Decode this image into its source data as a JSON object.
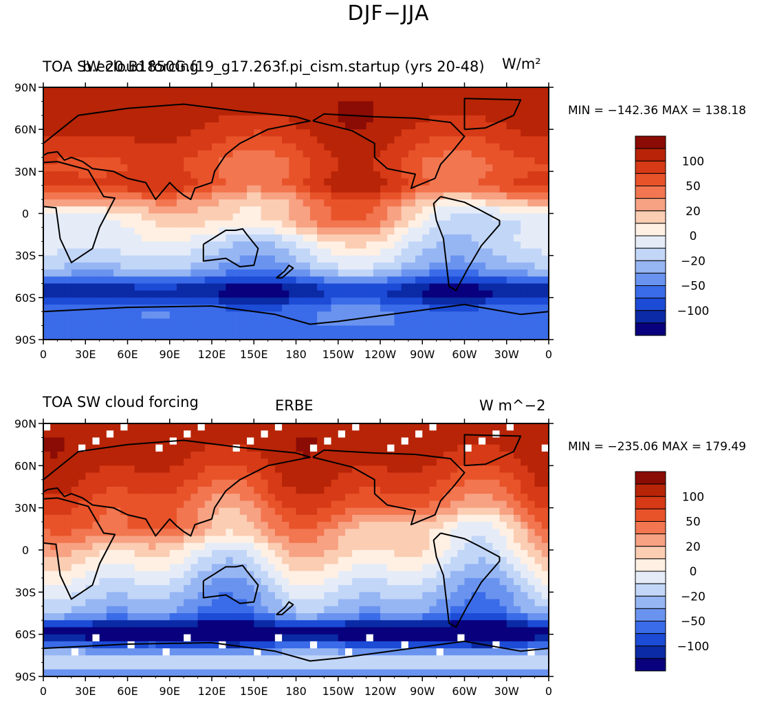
{
  "title": "DJF−JJA",
  "colors": {
    "levels": [
      "#08007c",
      "#0b2aa5",
      "#1c4bd6",
      "#3a6be8",
      "#6993ef",
      "#96b5f3",
      "#c2d6f8",
      "#e5ecf8",
      "#fff0e3",
      "#fbcdb3",
      "#f7a283",
      "#f27650",
      "#e8532a",
      "#d63a16",
      "#b82407",
      "#8a0c05"
    ],
    "missing": "#ffffff",
    "coast": "#000000"
  },
  "x_ticks": [
    "0",
    "30E",
    "60E",
    "90E",
    "120E",
    "150E",
    "180",
    "150W",
    "120W",
    "90W",
    "60W",
    "30W",
    "0"
  ],
  "y_ticks": [
    "90N",
    "60N",
    "30N",
    "0",
    "30S",
    "60S",
    "90S"
  ],
  "colorbar_labels": [
    "100",
    "50",
    "20",
    "0",
    "−20",
    "−50",
    "−100"
  ],
  "panels": [
    {
      "left_title": "TOA SW cloud forcing",
      "center_title": "b.e20.B1850G.f19_g17.263f.pi_cism.startup (yrs 20-48)",
      "right_title": "W/m²",
      "min_label": "MIN = −142.36 MAX = 138.18"
    },
    {
      "left_title": "TOA SW cloud forcing",
      "center_title": "ERBE",
      "right_title": "W m^−2",
      "min_label": "MIN = −235.06 MAX = 179.49"
    }
  ],
  "chart_data": [
    {
      "type": "heatmap",
      "title": "TOA SW cloud forcing — b.e20.B1850G.f19_g17.263f.pi_cism.startup (yrs 20-48)",
      "variable": "DJF−JJA TOA SW cloud forcing",
      "units": "W/m²",
      "xlim": [
        0,
        360
      ],
      "ylim": [
        -90,
        90
      ],
      "min": -142.36,
      "max": 138.18,
      "contour_levels": [
        -120,
        -100,
        -80,
        -60,
        -50,
        -40,
        -30,
        -20,
        -10,
        0,
        10,
        20,
        30,
        40,
        50,
        60,
        80,
        100,
        120
      ]
    },
    {
      "type": "heatmap",
      "title": "TOA SW cloud forcing — ERBE",
      "variable": "DJF−JJA TOA SW cloud forcing",
      "units": "W m^−2",
      "xlim": [
        0,
        360
      ],
      "ylim": [
        -90,
        90
      ],
      "min": -235.06,
      "max": 179.49,
      "contour_levels": [
        -120,
        -100,
        -80,
        -60,
        -50,
        -40,
        -30,
        -20,
        -10,
        0,
        10,
        20,
        30,
        40,
        50,
        60,
        80,
        100,
        120
      ]
    }
  ]
}
